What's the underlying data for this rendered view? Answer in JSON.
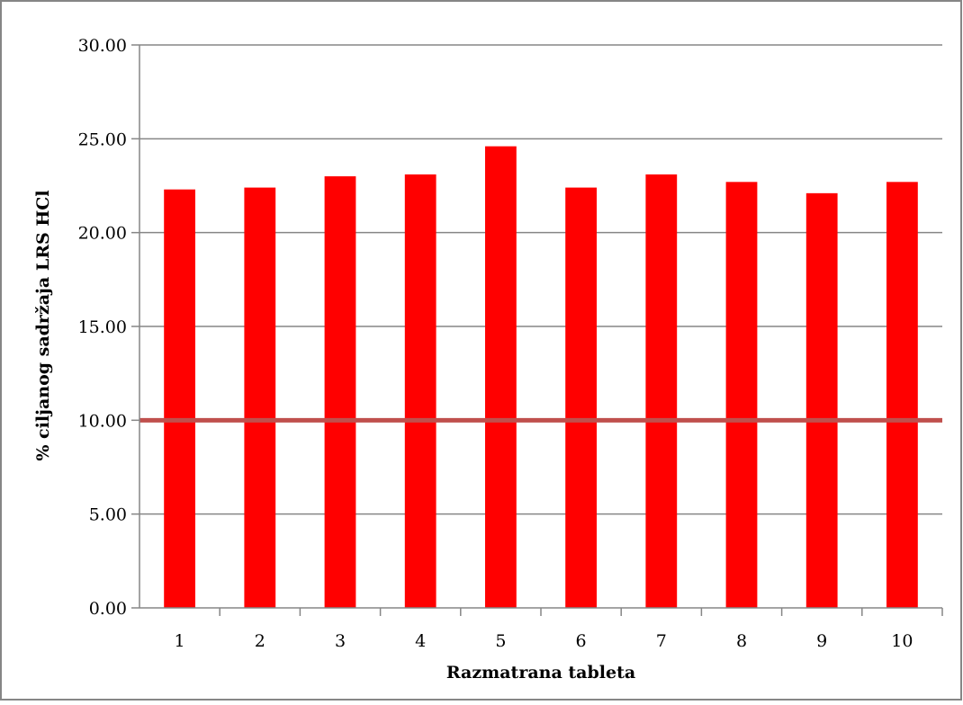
{
  "chart_data": {
    "type": "bar",
    "xlabel": "Razmatrana tableta",
    "ylabel": "% ciljanog sadržaja LRS HCl",
    "categories": [
      "1",
      "2",
      "3",
      "4",
      "5",
      "6",
      "7",
      "8",
      "9",
      "10"
    ],
    "series": [
      {
        "values": [
          22.3,
          22.4,
          23.0,
          23.1,
          24.6,
          22.4,
          23.1,
          22.7,
          22.1,
          22.7
        ]
      }
    ],
    "reference_line": {
      "value": 10.0
    },
    "ylim": [
      0,
      30
    ],
    "yticks": [
      "0.00",
      "5.00",
      "10.00",
      "15.00",
      "20.00",
      "25.00",
      "30.00"
    ],
    "grid": true,
    "colors": {
      "bars": "#ff0000",
      "reference_line": "#c0504d",
      "grid": "#868686"
    }
  }
}
